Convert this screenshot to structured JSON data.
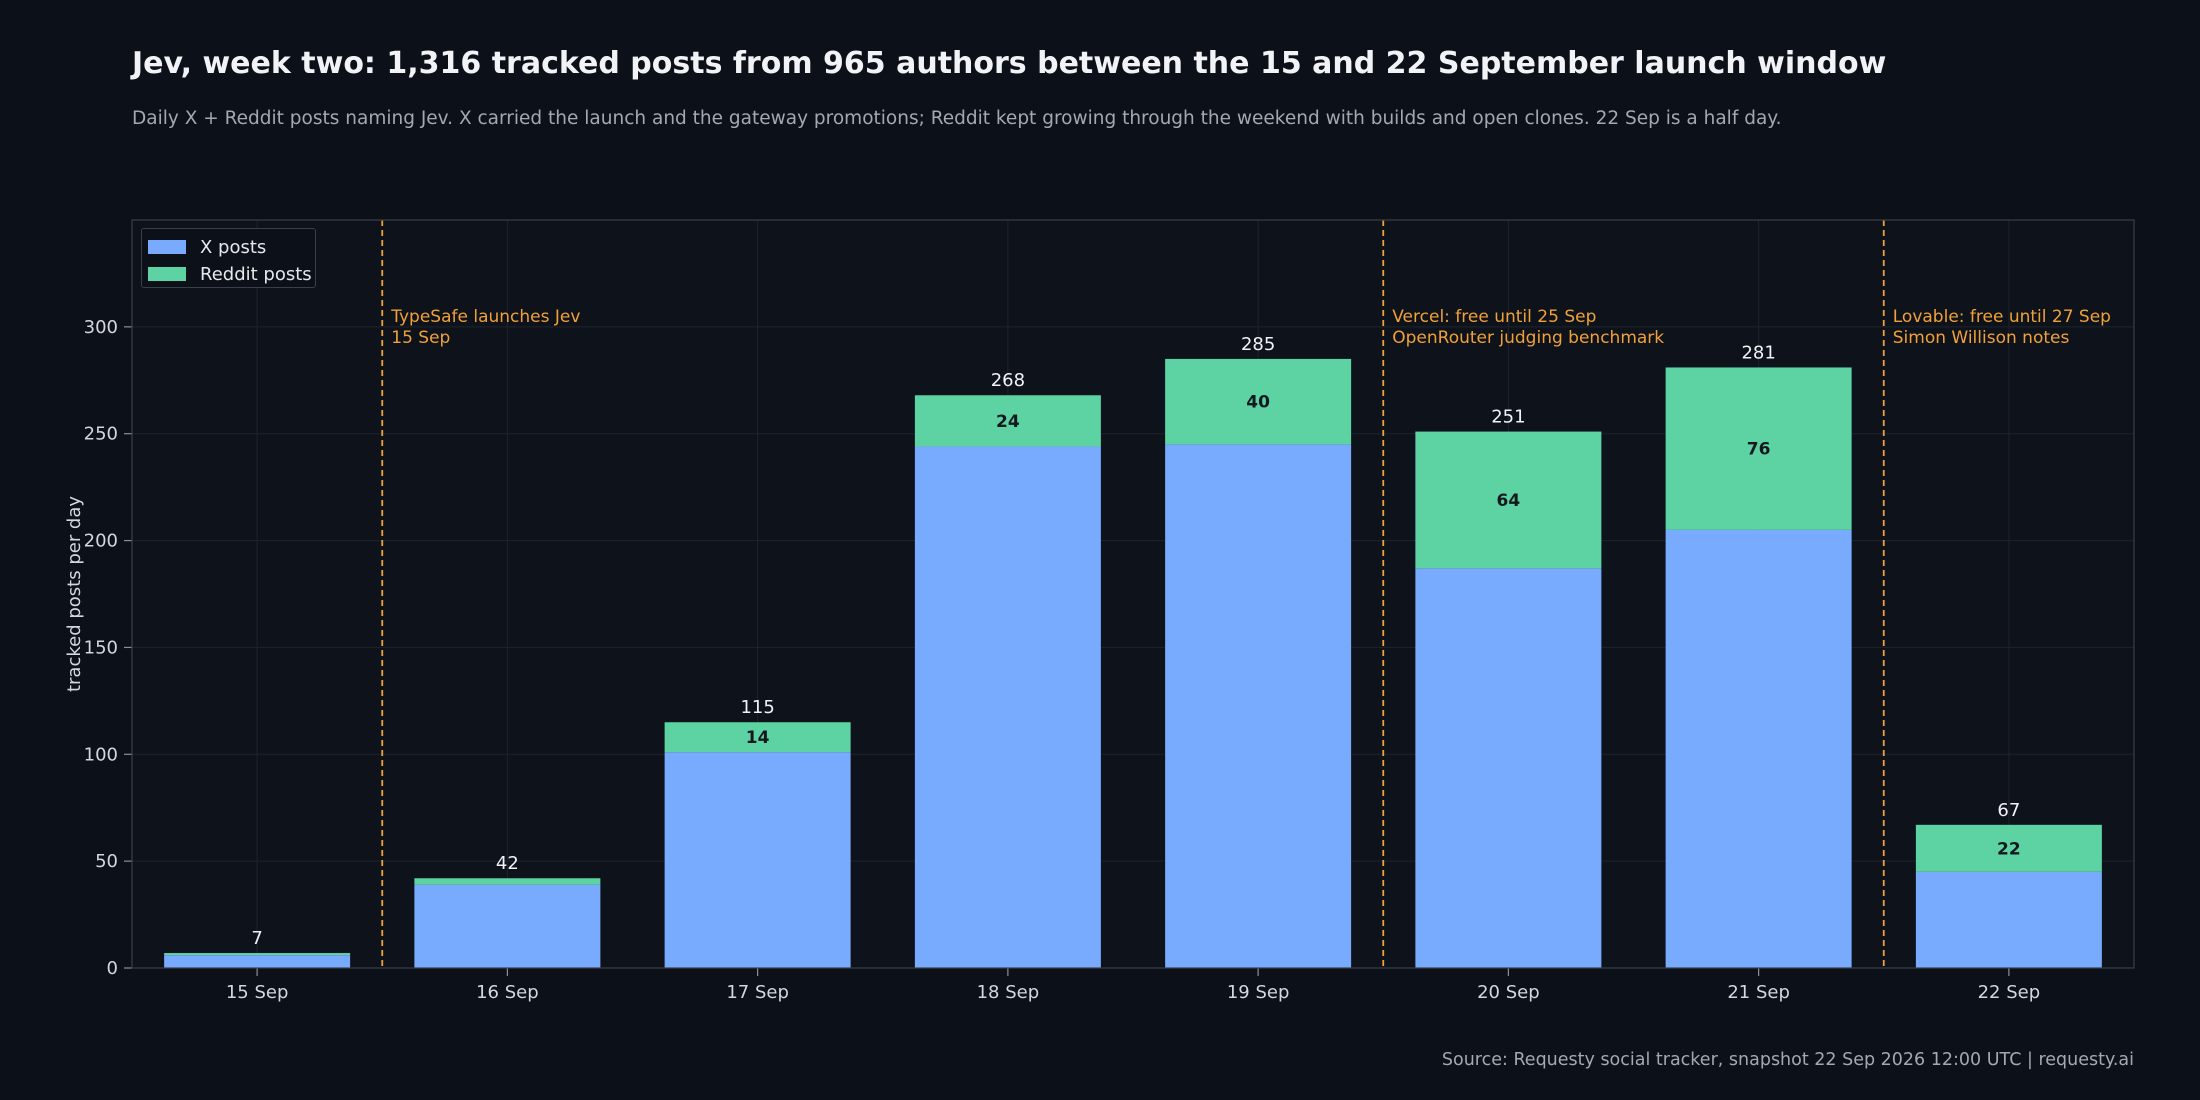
{
  "title": "Jev, week two: 1,316 tracked posts from 965 authors between the 15 and 22 September launch window",
  "subtitle": "Daily X + Reddit posts naming Jev. X carried the launch and the gateway promotions; Reddit kept growing through the weekend with builds and open clones. 22 Sep is a half day.",
  "source": "Source: Requesty social tracker, snapshot 22 Sep 2026 12:00 UTC  |  requesty.ai",
  "colors": {
    "x_posts": "#78aafd",
    "reddit_posts": "#5dd3a4",
    "annotation": "#f0a13a",
    "background": "#0c1018",
    "grid": "#1e232c"
  },
  "chart_data": {
    "type": "bar",
    "stacked": true,
    "categories": [
      "15 Sep",
      "16 Sep",
      "17 Sep",
      "18 Sep",
      "19 Sep",
      "20 Sep",
      "21 Sep",
      "22 Sep"
    ],
    "series": [
      {
        "name": "X posts",
        "values": [
          6,
          39,
          101,
          244,
          245,
          187,
          205,
          45
        ]
      },
      {
        "name": "Reddit posts",
        "values": [
          1,
          3,
          14,
          24,
          40,
          64,
          76,
          22
        ]
      }
    ],
    "totals": [
      7,
      42,
      115,
      268,
      285,
      251,
      281,
      67
    ],
    "segment_labels": [
      "",
      "",
      "14",
      "24",
      "40",
      "64",
      "76",
      "22"
    ],
    "ylabel": "tracked posts per day",
    "ylim": [
      0,
      350
    ],
    "yticks": [
      0,
      50,
      100,
      150,
      200,
      250,
      300
    ],
    "grid": true,
    "legend_position": "top-left",
    "annotations": [
      {
        "after_category": "15 Sep",
        "lines": [
          "TypeSafe launches Jev",
          "15 Sep"
        ]
      },
      {
        "after_category": "19 Sep",
        "lines": [
          "Vercel: free until 25 Sep",
          "OpenRouter judging benchmark"
        ]
      },
      {
        "after_category": "21 Sep",
        "lines": [
          "Lovable: free until 27 Sep",
          "Simon Willison notes"
        ]
      }
    ]
  }
}
